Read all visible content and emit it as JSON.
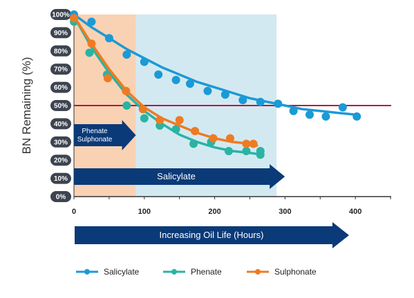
{
  "chart_data": {
    "type": "scatter",
    "ylabel": "BN Remaining (%)",
    "xlim": [
      0,
      450
    ],
    "ylim": [
      0,
      100
    ],
    "x_ticks": [
      0,
      100,
      200,
      300,
      400
    ],
    "y_ticks": [
      0,
      10,
      20,
      30,
      40,
      50,
      60,
      70,
      80,
      90,
      100
    ],
    "y_tick_labels": [
      "0%",
      "10%",
      "20%",
      "30%",
      "40%",
      "50%",
      "60%",
      "70%",
      "80%",
      "90%",
      "100%"
    ],
    "threshold": 50,
    "bands": [
      {
        "from": 0,
        "to": 88,
        "color": "#f9d2b3"
      },
      {
        "from": 88,
        "to": 288,
        "color": "#d3e9f1"
      }
    ],
    "arrows": {
      "phenate_sulphonate": {
        "line1": "Phenate",
        "line2": "Sulphonate",
        "x_end": 88
      },
      "salicylate": {
        "label": "Salicylate",
        "x_end": 288
      },
      "oil_life": {
        "label": "Increasing Oil Life (Hours)"
      }
    },
    "series": [
      {
        "name": "Salicylate",
        "color": "#1a9ad6",
        "points": [
          [
            0,
            100
          ],
          [
            25,
            96
          ],
          [
            50,
            87
          ],
          [
            75,
            78
          ],
          [
            100,
            74
          ],
          [
            120,
            67
          ],
          [
            145,
            64
          ],
          [
            165,
            62
          ],
          [
            190,
            58
          ],
          [
            215,
            56
          ],
          [
            240,
            53
          ],
          [
            265,
            52
          ],
          [
            290,
            51
          ],
          [
            312,
            47
          ],
          [
            335,
            45
          ],
          [
            358,
            44
          ],
          [
            382,
            49
          ],
          [
            402,
            44
          ]
        ],
        "curve": [
          [
            0,
            100
          ],
          [
            25,
            93
          ],
          [
            50,
            87
          ],
          [
            75,
            81
          ],
          [
            100,
            76
          ],
          [
            125,
            71
          ],
          [
            150,
            67
          ],
          [
            175,
            63
          ],
          [
            200,
            60
          ],
          [
            225,
            57
          ],
          [
            250,
            54
          ],
          [
            275,
            52
          ],
          [
            300,
            50
          ],
          [
            325,
            48
          ],
          [
            350,
            47
          ],
          [
            375,
            46
          ],
          [
            400,
            45
          ]
        ]
      },
      {
        "name": "Phenate",
        "color": "#2ab3a3",
        "points": [
          [
            0,
            96
          ],
          [
            22,
            79
          ],
          [
            47,
            67
          ],
          [
            75,
            50
          ],
          [
            100,
            43
          ],
          [
            122,
            39
          ],
          [
            145,
            37
          ],
          [
            170,
            29
          ],
          [
            195,
            30
          ],
          [
            220,
            25
          ],
          [
            245,
            25
          ],
          [
            265,
            25
          ],
          [
            265,
            23
          ]
        ],
        "curve": [
          [
            0,
            99
          ],
          [
            25,
            82
          ],
          [
            50,
            68
          ],
          [
            75,
            56
          ],
          [
            100,
            47
          ],
          [
            125,
            40
          ],
          [
            150,
            34
          ],
          [
            175,
            30
          ],
          [
            200,
            27
          ],
          [
            225,
            25
          ],
          [
            250,
            24
          ],
          [
            268,
            23
          ]
        ]
      },
      {
        "name": "Sulphonate",
        "color": "#ee7b22",
        "points": [
          [
            0,
            98
          ],
          [
            25,
            84
          ],
          [
            48,
            65
          ],
          [
            74,
            58
          ],
          [
            98,
            48
          ],
          [
            122,
            42
          ],
          [
            150,
            42
          ],
          [
            172,
            36
          ],
          [
            198,
            32
          ],
          [
            222,
            32
          ],
          [
            245,
            29
          ],
          [
            255,
            29
          ]
        ],
        "curve": [
          [
            0,
            99
          ],
          [
            25,
            84
          ],
          [
            50,
            70
          ],
          [
            75,
            58
          ],
          [
            100,
            49
          ],
          [
            125,
            43
          ],
          [
            150,
            39
          ],
          [
            175,
            35
          ],
          [
            200,
            32
          ],
          [
            225,
            30
          ],
          [
            250,
            29
          ],
          [
            260,
            28
          ]
        ]
      }
    ]
  }
}
